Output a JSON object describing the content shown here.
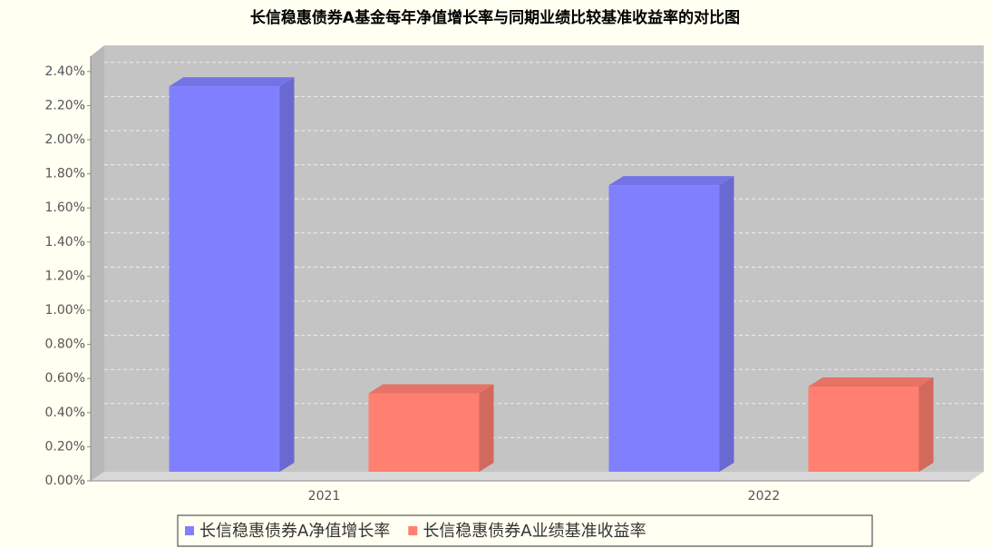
{
  "chart_data": {
    "type": "bar3d",
    "title": "长信稳惠债券A基金每年净值增长率与同期业绩比较基准收益率的对比图",
    "categories": [
      "2021",
      "2022"
    ],
    "series": [
      {
        "name": "长信稳惠债券A净值增长率",
        "color": "#8080ff",
        "values": [
          2.26,
          1.68
        ]
      },
      {
        "name": "长信稳惠债券A业绩基准收益率",
        "color": "#ff8070",
        "values": [
          0.46,
          0.5
        ]
      }
    ],
    "ylim": [
      0,
      2.5
    ],
    "yticks": [
      {
        "value": 0,
        "label": "0.00%"
      },
      {
        "value": 0.2,
        "label": "0.20%"
      },
      {
        "value": 0.4,
        "label": "0.40%"
      },
      {
        "value": 0.6,
        "label": "0.60%"
      },
      {
        "value": 0.8,
        "label": "0.80%"
      },
      {
        "value": 1.0,
        "label": "1.00%"
      },
      {
        "value": 1.2,
        "label": "1.20%"
      },
      {
        "value": 1.4,
        "label": "1.40%"
      },
      {
        "value": 1.6,
        "label": "1.60%"
      },
      {
        "value": 1.8,
        "label": "1.80%"
      },
      {
        "value": 2.0,
        "label": "2.00%"
      },
      {
        "value": 2.2,
        "label": "2.20%"
      },
      {
        "value": 2.4,
        "label": "2.40%"
      }
    ],
    "grid": true
  }
}
